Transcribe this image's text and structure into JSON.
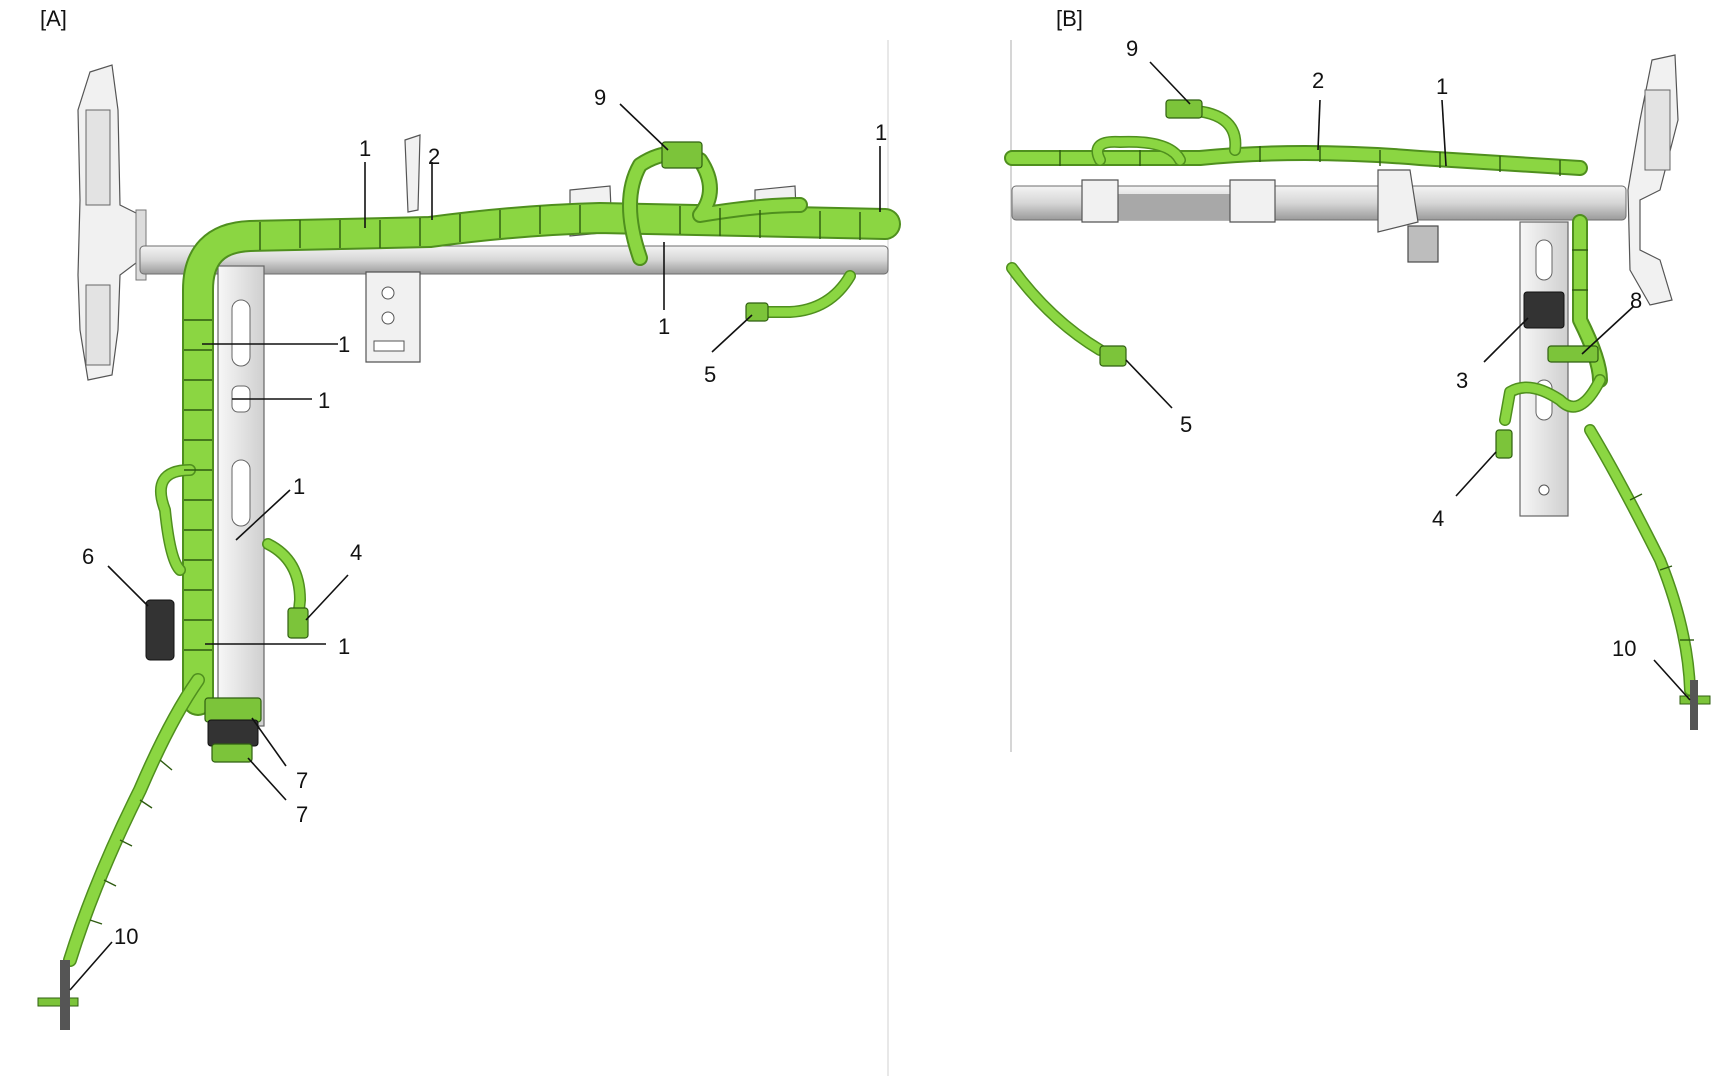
{
  "panels": [
    {
      "id": "A",
      "label": "[A]",
      "callouts": [
        "1",
        "2",
        "9",
        "1",
        "1",
        "5",
        "1",
        "1",
        "1",
        "4",
        "6",
        "1",
        "7",
        "7",
        "10"
      ]
    },
    {
      "id": "B",
      "label": "[B]",
      "callouts": [
        "9",
        "2",
        "1",
        "8",
        "3",
        "5",
        "4",
        "10"
      ]
    }
  ],
  "colors": {
    "harness": "#8bd642",
    "harness_edge": "#4f8f1e",
    "bracket": "#f1f1f1",
    "crossbar": "#c9c9c9",
    "divider": "#d0d0d0"
  }
}
